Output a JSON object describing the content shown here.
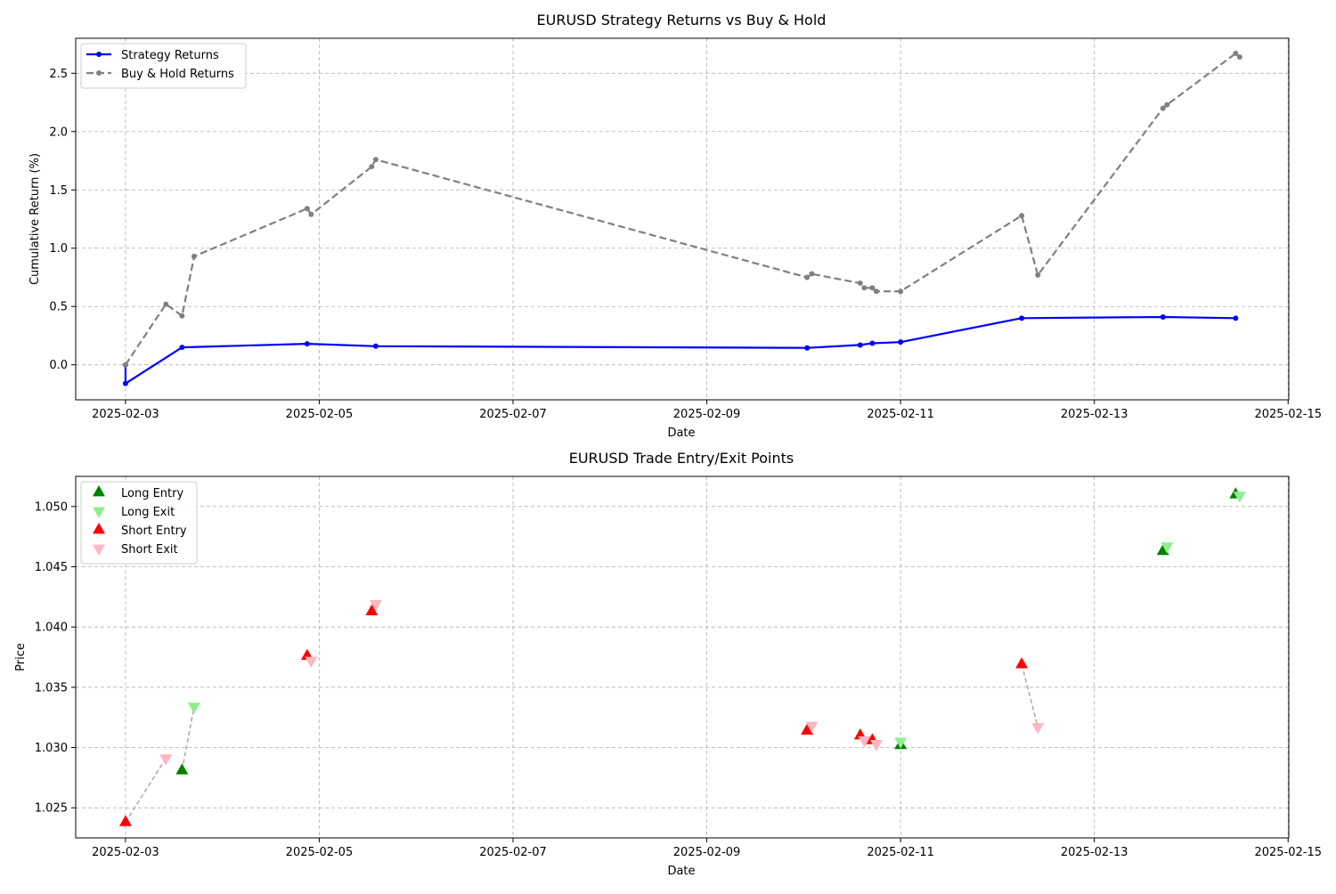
{
  "chart_data": [
    {
      "type": "line",
      "title": "EURUSD Strategy Returns vs Buy & Hold",
      "xlabel": "Date",
      "ylabel": "Cumulative Return (%)",
      "xlim": [
        "2025-02-02T11:40",
        "2025-02-15T00:10"
      ],
      "ylim": [
        -0.3,
        2.8
      ],
      "xticks": [
        "2025-02-03",
        "2025-02-05",
        "2025-02-07",
        "2025-02-09",
        "2025-02-11",
        "2025-02-13",
        "2025-02-15"
      ],
      "yticks": [
        "0.0",
        "0.5",
        "1.0",
        "1.5",
        "2.0",
        "2.5"
      ],
      "grid": true,
      "legend_position": "upper-left",
      "series": [
        {
          "name": "Strategy Returns",
          "color": "#0000ff",
          "style": "solid",
          "points": [
            {
              "x": "2025-02-03T00:00",
              "y": 0.0
            },
            {
              "x": "2025-02-03T00:00",
              "y": -0.16
            },
            {
              "x": "2025-02-03T14:00",
              "y": 0.15
            },
            {
              "x": "2025-02-04T21:00",
              "y": 0.18
            },
            {
              "x": "2025-02-05T14:00",
              "y": 0.16
            },
            {
              "x": "2025-02-10T00:50",
              "y": 0.145
            },
            {
              "x": "2025-02-10T14:00",
              "y": 0.17
            },
            {
              "x": "2025-02-10T17:00",
              "y": 0.185
            },
            {
              "x": "2025-02-11T00:00",
              "y": 0.195
            },
            {
              "x": "2025-02-12T06:00",
              "y": 0.4
            },
            {
              "x": "2025-02-13T17:00",
              "y": 0.41
            },
            {
              "x": "2025-02-14T11:00",
              "y": 0.4
            }
          ]
        },
        {
          "name": "Buy & Hold Returns",
          "color": "#808080",
          "style": "dashed",
          "points": [
            {
              "x": "2025-02-03T00:00",
              "y": 0.0
            },
            {
              "x": "2025-02-03T10:00",
              "y": 0.52
            },
            {
              "x": "2025-02-03T14:00",
              "y": 0.42
            },
            {
              "x": "2025-02-03T17:00",
              "y": 0.93
            },
            {
              "x": "2025-02-04T21:00",
              "y": 1.34
            },
            {
              "x": "2025-02-04T22:00",
              "y": 1.29
            },
            {
              "x": "2025-02-05T13:00",
              "y": 1.7
            },
            {
              "x": "2025-02-05T14:00",
              "y": 1.76
            },
            {
              "x": "2025-02-10T00:50",
              "y": 0.75
            },
            {
              "x": "2025-02-10T02:00",
              "y": 0.78
            },
            {
              "x": "2025-02-10T14:00",
              "y": 0.7
            },
            {
              "x": "2025-02-10T15:00",
              "y": 0.66
            },
            {
              "x": "2025-02-10T17:00",
              "y": 0.66
            },
            {
              "x": "2025-02-10T18:00",
              "y": 0.63
            },
            {
              "x": "2025-02-11T00:00",
              "y": 0.63
            },
            {
              "x": "2025-02-12T06:00",
              "y": 1.28
            },
            {
              "x": "2025-02-12T10:00",
              "y": 0.77
            },
            {
              "x": "2025-02-13T17:00",
              "y": 2.2
            },
            {
              "x": "2025-02-13T18:00",
              "y": 2.23
            },
            {
              "x": "2025-02-14T11:00",
              "y": 2.67
            },
            {
              "x": "2025-02-14T12:00",
              "y": 2.64
            }
          ]
        }
      ]
    },
    {
      "type": "scatter",
      "title": "EURUSD Trade Entry/Exit Points",
      "xlabel": "Date",
      "ylabel": "Price",
      "xlim": [
        "2025-02-02T11:40",
        "2025-02-15T00:10"
      ],
      "ylim": [
        1.0225,
        1.0525
      ],
      "xticks": [
        "2025-02-03",
        "2025-02-05",
        "2025-02-07",
        "2025-02-09",
        "2025-02-11",
        "2025-02-13",
        "2025-02-15"
      ],
      "yticks": [
        "1.025",
        "1.030",
        "1.035",
        "1.040",
        "1.045",
        "1.050"
      ],
      "grid": true,
      "legend_position": "upper-left",
      "connector_color": "#a9a9a9",
      "series": [
        {
          "name": "Long Entry",
          "marker": "triangle-up",
          "color": "#008000",
          "points": [
            {
              "x": "2025-02-03T14:00",
              "y": 1.0281
            },
            {
              "x": "2025-02-11T00:00",
              "y": 1.0302
            },
            {
              "x": "2025-02-13T17:00",
              "y": 1.0463
            },
            {
              "x": "2025-02-14T11:00",
              "y": 1.051
            }
          ]
        },
        {
          "name": "Long Exit",
          "marker": "triangle-down",
          "color": "#90ee90",
          "points": [
            {
              "x": "2025-02-03T17:00",
              "y": 1.0334
            },
            {
              "x": "2025-02-11T00:00",
              "y": 1.0305
            },
            {
              "x": "2025-02-13T18:00",
              "y": 1.0467
            },
            {
              "x": "2025-02-14T12:00",
              "y": 1.0509
            }
          ]
        },
        {
          "name": "Short Entry",
          "marker": "triangle-up",
          "color": "#ff0000",
          "points": [
            {
              "x": "2025-02-03T00:00",
              "y": 1.0238
            },
            {
              "x": "2025-02-04T21:00",
              "y": 1.0376
            },
            {
              "x": "2025-02-05T13:00",
              "y": 1.0413
            },
            {
              "x": "2025-02-10T00:50",
              "y": 1.0314
            },
            {
              "x": "2025-02-10T14:00",
              "y": 1.031
            },
            {
              "x": "2025-02-10T17:00",
              "y": 1.0306
            },
            {
              "x": "2025-02-12T06:00",
              "y": 1.0369
            }
          ]
        },
        {
          "name": "Short Exit",
          "marker": "triangle-down",
          "color": "#ffb6c1",
          "points": [
            {
              "x": "2025-02-03T10:00",
              "y": 1.0291
            },
            {
              "x": "2025-02-04T22:00",
              "y": 1.0372
            },
            {
              "x": "2025-02-05T14:00",
              "y": 1.0419
            },
            {
              "x": "2025-02-10T02:00",
              "y": 1.0318
            },
            {
              "x": "2025-02-10T15:00",
              "y": 1.0306
            },
            {
              "x": "2025-02-10T18:00",
              "y": 1.0303
            },
            {
              "x": "2025-02-12T10:00",
              "y": 1.0317
            }
          ]
        }
      ],
      "connectors": [
        {
          "from": {
            "x": "2025-02-03T00:00",
            "y": 1.0238
          },
          "to": {
            "x": "2025-02-03T10:00",
            "y": 1.0291
          }
        },
        {
          "from": {
            "x": "2025-02-03T14:00",
            "y": 1.0281
          },
          "to": {
            "x": "2025-02-03T17:00",
            "y": 1.0334
          }
        },
        {
          "from": {
            "x": "2025-02-04T21:00",
            "y": 1.0376
          },
          "to": {
            "x": "2025-02-04T22:00",
            "y": 1.0372
          }
        },
        {
          "from": {
            "x": "2025-02-05T13:00",
            "y": 1.0413
          },
          "to": {
            "x": "2025-02-05T14:00",
            "y": 1.0419
          }
        },
        {
          "from": {
            "x": "2025-02-10T00:50",
            "y": 1.0314
          },
          "to": {
            "x": "2025-02-10T02:00",
            "y": 1.0318
          }
        },
        {
          "from": {
            "x": "2025-02-10T14:00",
            "y": 1.031
          },
          "to": {
            "x": "2025-02-10T15:00",
            "y": 1.0306
          }
        },
        {
          "from": {
            "x": "2025-02-10T17:00",
            "y": 1.0306
          },
          "to": {
            "x": "2025-02-10T18:00",
            "y": 1.0303
          }
        },
        {
          "from": {
            "x": "2025-02-11T00:00",
            "y": 1.0302
          },
          "to": {
            "x": "2025-02-11T00:00",
            "y": 1.0305
          }
        },
        {
          "from": {
            "x": "2025-02-12T06:00",
            "y": 1.0369
          },
          "to": {
            "x": "2025-02-12T10:00",
            "y": 1.0317
          }
        },
        {
          "from": {
            "x": "2025-02-13T17:00",
            "y": 1.0463
          },
          "to": {
            "x": "2025-02-13T18:00",
            "y": 1.0467
          }
        },
        {
          "from": {
            "x": "2025-02-14T11:00",
            "y": 1.051
          },
          "to": {
            "x": "2025-02-14T12:00",
            "y": 1.0509
          }
        }
      ]
    }
  ]
}
